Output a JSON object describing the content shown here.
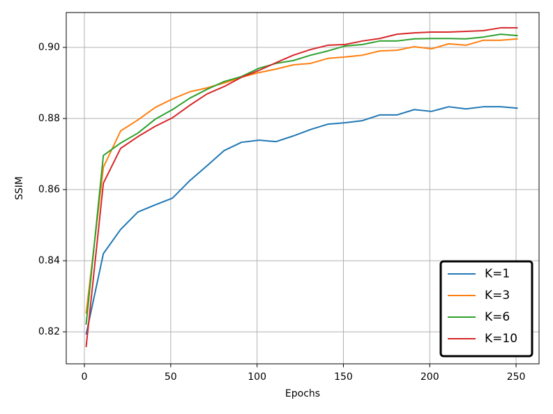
{
  "chart_data": {
    "type": "line",
    "xlabel": "Epochs",
    "ylabel": "SSIM",
    "x": [
      1,
      11,
      21,
      31,
      41,
      51,
      61,
      71,
      81,
      91,
      101,
      111,
      121,
      131,
      141,
      151,
      161,
      171,
      181,
      191,
      201,
      211,
      221,
      231,
      241,
      251
    ],
    "series": [
      {
        "name": "K=1",
        "color": "#1f77b4",
        "values": [
          0.8192,
          0.842,
          0.8488,
          0.8537,
          0.8557,
          0.8576,
          0.8625,
          0.8667,
          0.871,
          0.8733,
          0.8739,
          0.8735,
          0.8751,
          0.8769,
          0.8784,
          0.8788,
          0.8794,
          0.881,
          0.881,
          0.8825,
          0.882,
          0.8833,
          0.8827,
          0.8833,
          0.8833,
          0.8829
        ]
      },
      {
        "name": "K=3",
        "color": "#ff7f0e",
        "values": [
          0.8251,
          0.8663,
          0.8765,
          0.8796,
          0.8831,
          0.8855,
          0.8875,
          0.8886,
          0.89,
          0.8916,
          0.8929,
          0.8939,
          0.8951,
          0.8955,
          0.8969,
          0.8973,
          0.8978,
          0.899,
          0.8992,
          0.9002,
          0.8996,
          0.901,
          0.9006,
          0.902,
          0.902,
          0.9024
        ]
      },
      {
        "name": "K=6",
        "color": "#2ca02c",
        "values": [
          0.822,
          0.8696,
          0.8731,
          0.8759,
          0.8798,
          0.8825,
          0.8857,
          0.8882,
          0.8904,
          0.8918,
          0.8941,
          0.8955,
          0.8963,
          0.8978,
          0.899,
          0.9004,
          0.9008,
          0.9018,
          0.9018,
          0.9024,
          0.9025,
          0.9025,
          0.9024,
          0.9029,
          0.9037,
          0.9033
        ]
      },
      {
        "name": "K=10",
        "color": "#d62728",
        "values": [
          0.8157,
          0.8618,
          0.8716,
          0.8749,
          0.8778,
          0.8802,
          0.8837,
          0.8869,
          0.889,
          0.8916,
          0.8935,
          0.8957,
          0.8978,
          0.8994,
          0.9006,
          0.9008,
          0.9018,
          0.9025,
          0.9037,
          0.9041,
          0.9043,
          0.9043,
          0.9045,
          0.9047,
          0.9055,
          0.9055
        ]
      }
    ],
    "xlim": [
      -10.5,
      263.3
    ],
    "ylim": [
      0.811,
      0.9098
    ],
    "xticks": [
      0,
      50,
      100,
      150,
      200,
      250
    ],
    "yticks": [
      0.82,
      0.84,
      0.86,
      0.88,
      {
        "value": 0.9,
        "label": "0.90"
      }
    ],
    "grid": true,
    "legend": "lower right"
  }
}
